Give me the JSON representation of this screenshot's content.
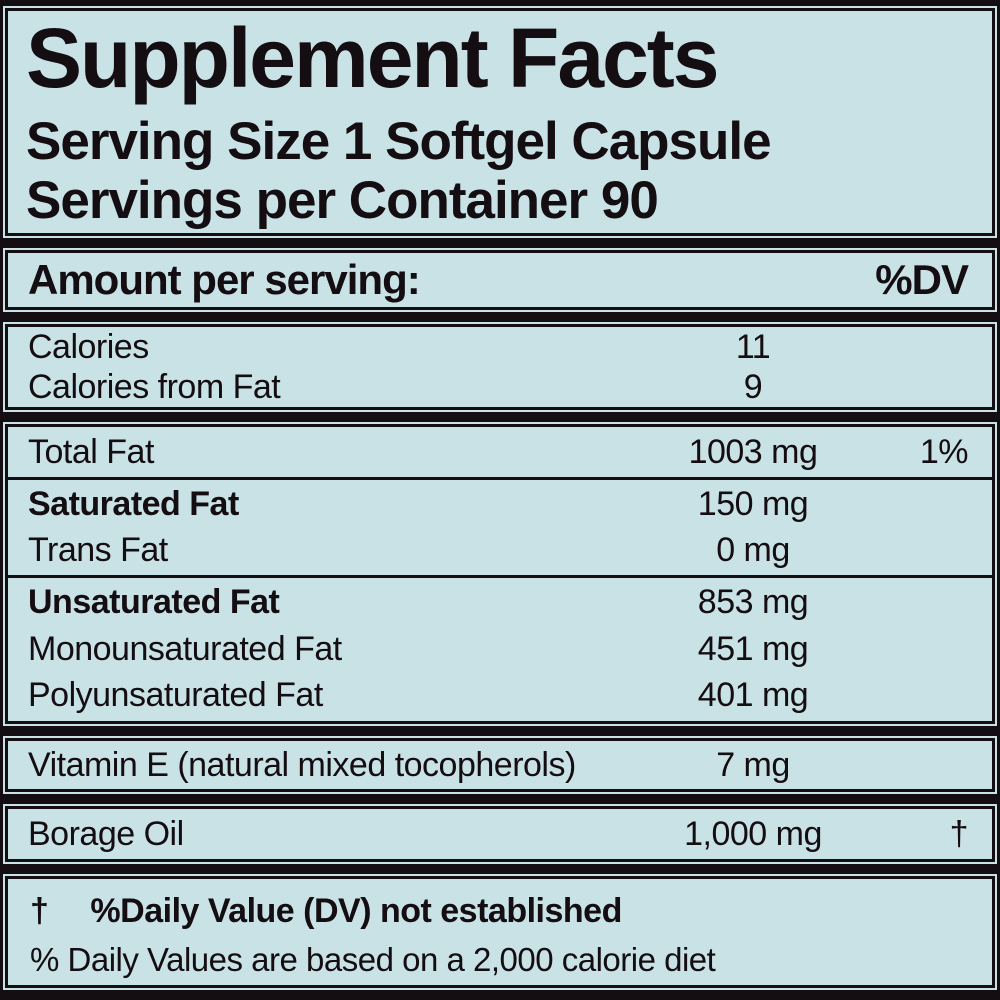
{
  "panel": {
    "title": "Supplement Facts",
    "serving_size": "Serving Size 1 Softgel Capsule",
    "servings_per_container": "Servings per Container 90",
    "column_header": {
      "amount": "Amount per serving:",
      "dv": "%DV"
    },
    "calories_rows": [
      {
        "name": "Calories",
        "amount": "11",
        "dv": ""
      },
      {
        "name": "Calories from Fat",
        "amount": "9",
        "dv": ""
      }
    ],
    "fat_rows": {
      "total": {
        "name": "Total Fat",
        "amount": "1003 mg",
        "dv": "1%"
      },
      "saturated": {
        "name": "Saturated Fat",
        "amount": "150 mg",
        "dv": ""
      },
      "trans": {
        "name": "Trans Fat",
        "amount": "0 mg",
        "dv": ""
      },
      "unsaturated": {
        "name": "Unsaturated Fat",
        "amount": "853 mg",
        "dv": ""
      },
      "mono": {
        "name": "Monounsaturated Fat",
        "amount": "451 mg",
        "dv": ""
      },
      "poly": {
        "name": "Polyunsaturated Fat",
        "amount": "401 mg",
        "dv": ""
      }
    },
    "vitamin_e_row": {
      "name": "Vitamin E (natural mixed tocopherols)",
      "amount": "7 mg",
      "dv": ""
    },
    "borage_row": {
      "name": "Borage Oil",
      "amount": "1,000 mg",
      "dv": "†"
    },
    "footnotes": {
      "dagger_symbol": "†",
      "dagger_text": "%Daily Value (DV) not established",
      "daily_value_text": "% Daily Values are based on a 2,000 calorie diet"
    },
    "colors": {
      "background": "#c9e2e6",
      "ink": "#140d11"
    }
  }
}
